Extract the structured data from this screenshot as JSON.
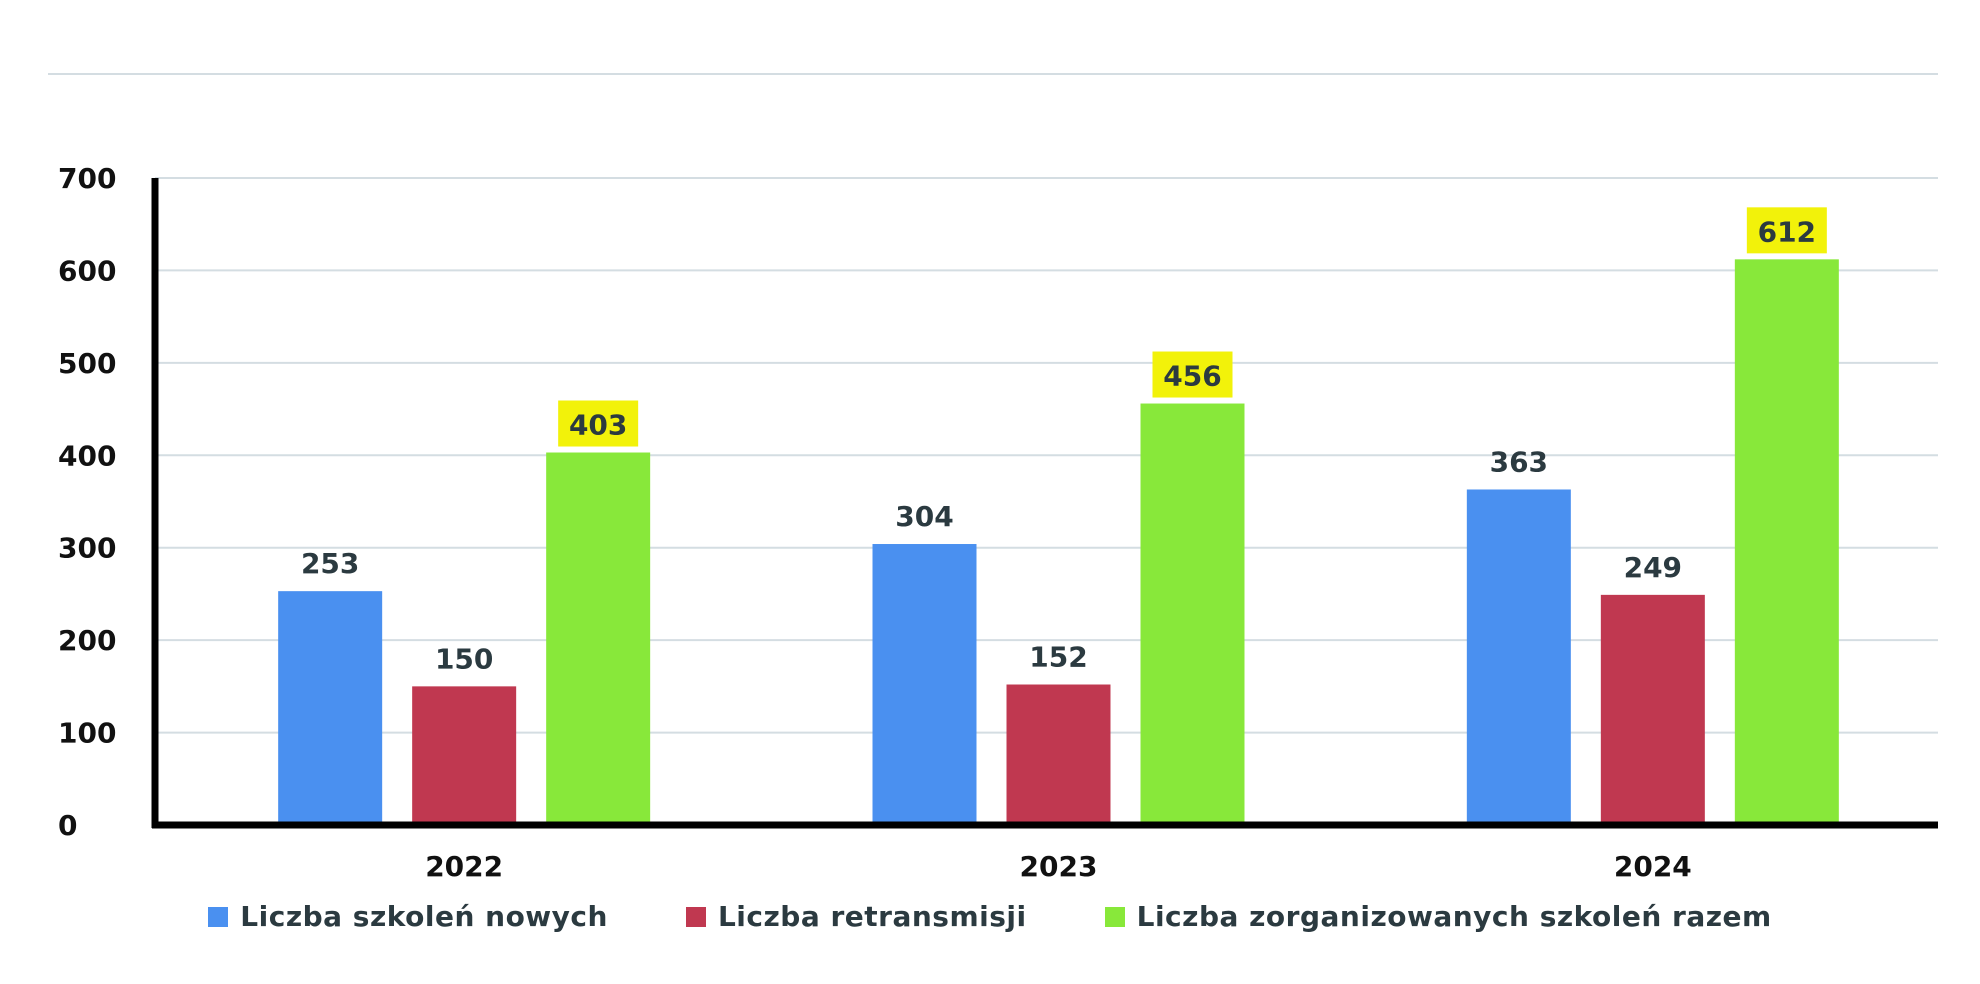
{
  "chart_data": {
    "type": "bar",
    "categories": [
      "2022",
      "2023",
      "2024"
    ],
    "series": [
      {
        "name": "Liczba szkoleń nowych",
        "color": "#4a90f0",
        "values": [
          253,
          304,
          363
        ]
      },
      {
        "name": "Liczba retransmisji",
        "color": "#c03850",
        "values": [
          150,
          152,
          249
        ]
      },
      {
        "name": "Liczba zorganizowanych szkoleń razem",
        "color": "#88e83a",
        "values": [
          403,
          456,
          612
        ],
        "label_highlight": "#f2f20a"
      }
    ],
    "ylim": [
      0,
      700
    ],
    "yticks": [
      "0",
      "100",
      "200",
      "300",
      "400",
      "500",
      "600",
      "700"
    ],
    "grid": true,
    "legend_position": "bottom-center",
    "title": "",
    "xlabel": "",
    "ylabel": ""
  }
}
